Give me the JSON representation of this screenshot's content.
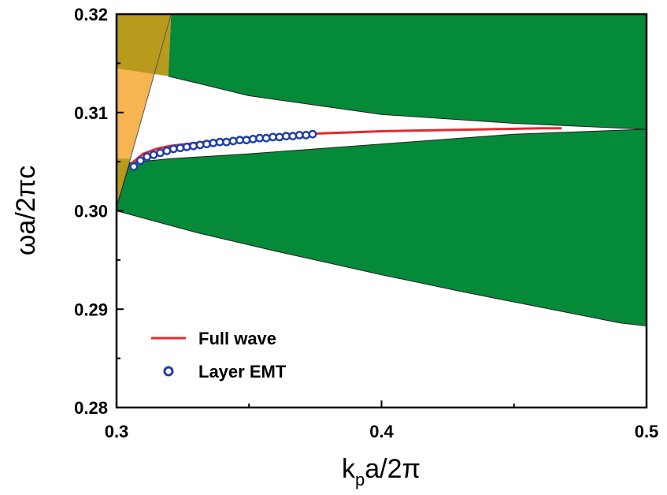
{
  "chart_data": {
    "type": "line",
    "xlim": [
      0.3,
      0.5
    ],
    "ylim": [
      0.28,
      0.32
    ],
    "x_ticks": [
      0.3,
      0.4,
      0.5
    ],
    "x_tick_labels": [
      "0.3",
      "0.4",
      "0.5"
    ],
    "y_ticks": [
      0.28,
      0.29,
      0.3,
      0.31,
      0.32
    ],
    "y_tick_labels": [
      "0.28",
      "0.29",
      "0.30",
      "0.31",
      "0.32"
    ],
    "xlabel_main": "k",
    "xlabel_sub": "p",
    "xlabel_rest": "a/2π",
    "ylabel": "ωa/2πc",
    "legend_position": "lower-left",
    "colors": {
      "band": "#058a3a",
      "light_cone": "#f5b550",
      "light_cone_overlap": "#b89a1c",
      "full_wave": "#e8282b",
      "layer_emt": "#1f3fa8"
    },
    "regions": {
      "light_cone_boundary": [
        [
          0.3,
          0.3003
        ],
        [
          0.3206,
          0.32
        ]
      ],
      "upper_band_lower_edge": [
        [
          0.3195,
          0.3137
        ],
        [
          0.35,
          0.3117
        ],
        [
          0.4,
          0.3098
        ],
        [
          0.45,
          0.3089
        ],
        [
          0.5,
          0.3083
        ]
      ],
      "lower_band_upper_edge": [
        [
          0.3,
          0.3004
        ],
        [
          0.305,
          0.3049
        ],
        [
          0.32,
          0.3053
        ],
        [
          0.35,
          0.3058
        ],
        [
          0.4,
          0.3068
        ],
        [
          0.45,
          0.3078
        ],
        [
          0.5,
          0.3083
        ]
      ],
      "lower_band_lower_edge": [
        [
          0.3,
          0.3
        ],
        [
          0.33,
          0.2978
        ],
        [
          0.36,
          0.2959
        ],
        [
          0.4,
          0.2935
        ],
        [
          0.43,
          0.2918
        ],
        [
          0.46,
          0.2902
        ],
        [
          0.49,
          0.2886
        ],
        [
          0.5,
          0.2883
        ]
      ]
    },
    "series": [
      {
        "name": "Full wave",
        "style": "line",
        "x": [
          0.306,
          0.31,
          0.315,
          0.32,
          0.33,
          0.34,
          0.35,
          0.36,
          0.37,
          0.38,
          0.39,
          0.4,
          0.42,
          0.44,
          0.46,
          0.468
        ],
        "y": [
          0.3049,
          0.3058,
          0.3063,
          0.3066,
          0.3069,
          0.3072,
          0.3074,
          0.3076,
          0.3078,
          0.3079,
          0.308,
          0.3081,
          0.3082,
          0.3083,
          0.3084,
          0.3084
        ]
      },
      {
        "name": "Layer EMT",
        "style": "markers",
        "x": [
          0.3065,
          0.309,
          0.3115,
          0.314,
          0.3165,
          0.319,
          0.3215,
          0.324,
          0.3265,
          0.329,
          0.3315,
          0.334,
          0.3365,
          0.339,
          0.3415,
          0.344,
          0.3465,
          0.349,
          0.3515,
          0.354,
          0.3565,
          0.359,
          0.3615,
          0.364,
          0.3665,
          0.369,
          0.3715,
          0.374
        ],
        "y": [
          0.3045,
          0.3051,
          0.3055,
          0.3057,
          0.3059,
          0.3061,
          0.3063,
          0.3064,
          0.3065,
          0.3066,
          0.3067,
          0.3068,
          0.3069,
          0.307,
          0.307,
          0.3071,
          0.3072,
          0.3072,
          0.3073,
          0.3074,
          0.3074,
          0.3075,
          0.3075,
          0.3076,
          0.3076,
          0.3077,
          0.3077,
          0.3078
        ]
      }
    ]
  }
}
